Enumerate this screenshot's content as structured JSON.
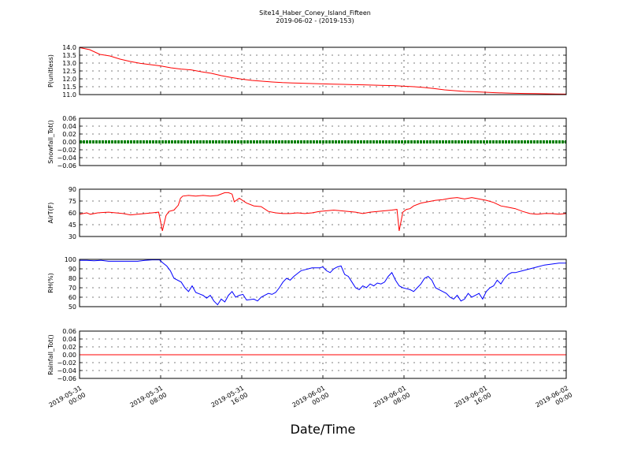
{
  "title_line1": "Site14_Haber_Coney_Island_Fifteen",
  "title_line2": "2019-06-02 - (2019-153)",
  "xlabel": "Date/Time",
  "x_ticks": [
    {
      "hour": 0,
      "line1": "2019-05-31",
      "line2": "00:00"
    },
    {
      "hour": 8,
      "line1": "2019-05-31",
      "line2": "08:00"
    },
    {
      "hour": 16,
      "line1": "2019-05-31",
      "line2": "16:00"
    },
    {
      "hour": 24,
      "line1": "2019-06-01",
      "line2": "00:00"
    },
    {
      "hour": 32,
      "line1": "2019-06-01",
      "line2": "08:00"
    },
    {
      "hour": 40,
      "line1": "2019-06-01",
      "line2": "16:00"
    },
    {
      "hour": 48,
      "line1": "2019-06-02",
      "line2": "00:00"
    }
  ],
  "chart_data": [
    {
      "type": "line",
      "ylabel": "P(unitless)",
      "ylim": [
        11.0,
        14.0
      ],
      "yticks": [
        "11.0",
        "11.5",
        "12.0",
        "12.5",
        "13.0",
        "13.5",
        "14.0"
      ],
      "grid": true,
      "series": [
        {
          "color": "#ff0000",
          "points": [
            [
              0,
              13.98
            ],
            [
              1,
              13.85
            ],
            [
              2,
              13.55
            ],
            [
              3,
              13.45
            ],
            [
              4,
              13.25
            ],
            [
              5,
              13.1
            ],
            [
              6,
              12.98
            ],
            [
              7,
              12.9
            ],
            [
              8,
              12.82
            ],
            [
              9,
              12.7
            ],
            [
              10,
              12.62
            ],
            [
              11,
              12.57
            ],
            [
              12,
              12.45
            ],
            [
              13,
              12.35
            ],
            [
              14,
              12.2
            ],
            [
              15,
              12.08
            ],
            [
              16,
              11.98
            ],
            [
              17,
              11.9
            ],
            [
              18,
              11.85
            ],
            [
              19,
              11.8
            ],
            [
              20,
              11.76
            ],
            [
              21,
              11.74
            ],
            [
              22,
              11.72
            ],
            [
              23,
              11.7
            ],
            [
              24,
              11.68
            ],
            [
              25,
              11.66
            ],
            [
              26,
              11.65
            ],
            [
              27,
              11.63
            ],
            [
              28,
              11.62
            ],
            [
              29,
              11.6
            ],
            [
              30,
              11.58
            ],
            [
              31,
              11.57
            ],
            [
              32,
              11.53
            ],
            [
              33,
              11.5
            ],
            [
              34,
              11.45
            ],
            [
              35,
              11.38
            ],
            [
              36,
              11.3
            ],
            [
              37,
              11.25
            ],
            [
              38,
              11.2
            ],
            [
              39,
              11.18
            ],
            [
              40,
              11.15
            ],
            [
              41,
              11.12
            ],
            [
              42,
              11.1
            ],
            [
              43,
              11.08
            ],
            [
              44,
              11.07
            ],
            [
              45,
              11.06
            ],
            [
              46,
              11.05
            ],
            [
              47,
              11.04
            ],
            [
              48,
              11.03
            ]
          ]
        }
      ]
    },
    {
      "type": "scatter",
      "ylabel": "Snowfall_Tot()",
      "ylim": [
        -0.06,
        0.06
      ],
      "yticks": [
        "−0.06",
        "−0.04",
        "−0.02",
        "0.00",
        "0.02",
        "0.04",
        "0.06"
      ],
      "grid": true,
      "series": [
        {
          "color": "#008000",
          "constant": 0.0,
          "x_range": [
            0,
            48
          ]
        }
      ]
    },
    {
      "type": "line",
      "ylabel": "AirT(F)",
      "ylim": [
        30,
        98
      ],
      "yticks": [
        "30",
        "45",
        "60",
        "75",
        "90"
      ],
      "grid": true,
      "series": [
        {
          "color": "#ff0000",
          "points": [
            [
              0,
              62
            ],
            [
              1,
              64
            ],
            [
              1.5,
              62
            ],
            [
              2.5,
              64
            ],
            [
              4,
              65
            ],
            [
              5,
              64
            ],
            [
              6,
              63
            ],
            [
              7,
              61
            ],
            [
              8,
              62
            ],
            [
              9,
              63
            ],
            [
              10,
              64
            ],
            [
              10.9,
              65
            ],
            [
              11.4,
              38
            ],
            [
              11.9,
              60
            ],
            [
              12.3,
              66
            ],
            [
              13,
              68
            ],
            [
              13.6,
              75
            ],
            [
              13.9,
              85
            ],
            [
              14.2,
              88
            ],
            [
              15,
              89
            ],
            [
              16,
              88
            ],
            [
              17,
              89
            ],
            [
              18,
              88
            ],
            [
              19,
              89
            ],
            [
              20,
              93
            ],
            [
              20.5,
              93
            ],
            [
              21,
              91
            ],
            [
              21.3,
              80
            ],
            [
              22,
              85
            ],
            [
              23,
              78
            ],
            [
              24,
              74
            ],
            [
              25,
              73
            ],
            [
              26,
              66
            ],
            [
              27,
              64
            ],
            [
              28,
              63
            ],
            [
              29,
              63
            ],
            [
              30,
              64
            ],
            [
              31,
              63
            ],
            [
              32,
              64
            ],
            [
              33,
              66
            ],
            [
              34,
              67
            ],
            [
              35,
              68
            ],
            [
              36,
              67
            ],
            [
              37,
              66
            ],
            [
              38,
              65
            ],
            [
              39,
              63
            ],
            [
              40,
              65
            ],
            [
              41,
              66
            ],
            [
              42,
              67
            ],
            [
              43,
              68
            ],
            [
              43.7,
              69
            ],
            [
              44,
              38
            ],
            [
              44.5,
              65
            ],
            [
              45,
              69
            ],
            [
              45.5,
              70
            ],
            [
              46,
              74
            ],
            [
              47,
              78
            ],
            [
              48,
              80
            ],
            [
              49,
              82
            ],
            [
              50,
              83
            ],
            [
              51,
              85
            ],
            [
              52,
              86
            ],
            [
              53,
              84
            ],
            [
              54,
              86
            ],
            [
              55,
              84
            ],
            [
              56,
              82
            ],
            [
              57,
              79
            ],
            [
              58,
              74
            ],
            [
              59,
              72
            ],
            [
              60,
              70
            ],
            [
              61,
              66
            ],
            [
              62,
              63
            ],
            [
              63,
              62
            ],
            [
              64,
              63
            ],
            [
              65,
              63
            ],
            [
              66,
              62
            ],
            [
              67,
              63
            ]
          ],
          "x_scale": "rescale"
        }
      ]
    },
    {
      "type": "line",
      "ylabel": "RH(%)",
      "ylim": [
        50,
        100
      ],
      "yticks": [
        "50",
        "60",
        "70",
        "80",
        "90",
        "100"
      ],
      "grid": true,
      "series": [
        {
          "color": "#0000ff",
          "points": [
            [
              0,
              99
            ],
            [
              1,
              99
            ],
            [
              2,
              98.5
            ],
            [
              3,
              99
            ],
            [
              4,
              98
            ],
            [
              5,
              98
            ],
            [
              6,
              98
            ],
            [
              7,
              98
            ],
            [
              8,
              98
            ],
            [
              9,
              99
            ],
            [
              10,
              99.5
            ],
            [
              11,
              99.5
            ],
            [
              11.5,
              96
            ],
            [
              12,
              93
            ],
            [
              12.5,
              88
            ],
            [
              13,
              80
            ],
            [
              14,
              76
            ],
            [
              14.5,
              70
            ],
            [
              15,
              66
            ],
            [
              15.5,
              72
            ],
            [
              16,
              65
            ],
            [
              17,
              62
            ],
            [
              17.5,
              59
            ],
            [
              18,
              62
            ],
            [
              18.5,
              56
            ],
            [
              19,
              52
            ],
            [
              19.5,
              58
            ],
            [
              20,
              55
            ],
            [
              20.5,
              62
            ],
            [
              21,
              66
            ],
            [
              21.5,
              60
            ],
            [
              22,
              62
            ],
            [
              22.5,
              63
            ],
            [
              23,
              57
            ],
            [
              24,
              58
            ],
            [
              24.5,
              56
            ],
            [
              25,
              60
            ],
            [
              25.5,
              62
            ],
            [
              26,
              64
            ],
            [
              26.5,
              63
            ],
            [
              27,
              65
            ],
            [
              27.5,
              70
            ],
            [
              28,
              76
            ],
            [
              28.5,
              80
            ],
            [
              29,
              78
            ],
            [
              29.5,
              82
            ],
            [
              30,
              85
            ],
            [
              30.5,
              88
            ],
            [
              31,
              89
            ],
            [
              31.5,
              90
            ],
            [
              32,
              91
            ],
            [
              33,
              91
            ],
            [
              33.5,
              92
            ],
            [
              34,
              88
            ],
            [
              34.5,
              86
            ],
            [
              35,
              90
            ],
            [
              35.5,
              92
            ],
            [
              36,
              93
            ],
            [
              36.5,
              84
            ],
            [
              37,
              82
            ],
            [
              37.5,
              76
            ],
            [
              38,
              70
            ],
            [
              38.5,
              68
            ],
            [
              39,
              72
            ],
            [
              39.5,
              70
            ],
            [
              40,
              74
            ],
            [
              40.5,
              72
            ],
            [
              41,
              75
            ],
            [
              41.5,
              74
            ],
            [
              42,
              76
            ],
            [
              42.5,
              82
            ],
            [
              43,
              86
            ],
            [
              43.5,
              78
            ],
            [
              44,
              72
            ],
            [
              44.5,
              70
            ],
            [
              45,
              69
            ],
            [
              45.5,
              68
            ],
            [
              46,
              66
            ],
            [
              46.5,
              70
            ],
            [
              47,
              74
            ],
            [
              47.5,
              80
            ],
            [
              48,
              82
            ],
            [
              48.5,
              78
            ],
            [
              49,
              70
            ],
            [
              49.5,
              68
            ],
            [
              50,
              66
            ],
            [
              50.5,
              64
            ],
            [
              51,
              60
            ],
            [
              51.5,
              58
            ],
            [
              52,
              62
            ],
            [
              52.5,
              56
            ],
            [
              53,
              58
            ],
            [
              53.5,
              64
            ],
            [
              54,
              60
            ],
            [
              54.5,
              62
            ],
            [
              55,
              64
            ],
            [
              55.5,
              58
            ],
            [
              56,
              66
            ],
            [
              56.5,
              70
            ],
            [
              57,
              72
            ],
            [
              57.5,
              78
            ],
            [
              58,
              74
            ],
            [
              58.5,
              80
            ],
            [
              59,
              84
            ],
            [
              59.5,
              86
            ],
            [
              60,
              86
            ],
            [
              61,
              88
            ],
            [
              62,
              90
            ],
            [
              63,
              92
            ],
            [
              64,
              94
            ],
            [
              65,
              95
            ],
            [
              66,
              96
            ],
            [
              67,
              96
            ]
          ],
          "x_scale": "rescale"
        }
      ]
    },
    {
      "type": "line",
      "ylabel": "Rainfall_Tot()",
      "ylim": [
        -0.06,
        0.06
      ],
      "yticks": [
        "−0.06",
        "−0.04",
        "−0.02",
        "0.00",
        "0.02",
        "0.04",
        "0.06"
      ],
      "grid": true,
      "series": [
        {
          "color": "#ff0000",
          "constant": 0.0,
          "x_range": [
            0,
            48
          ]
        }
      ]
    }
  ]
}
